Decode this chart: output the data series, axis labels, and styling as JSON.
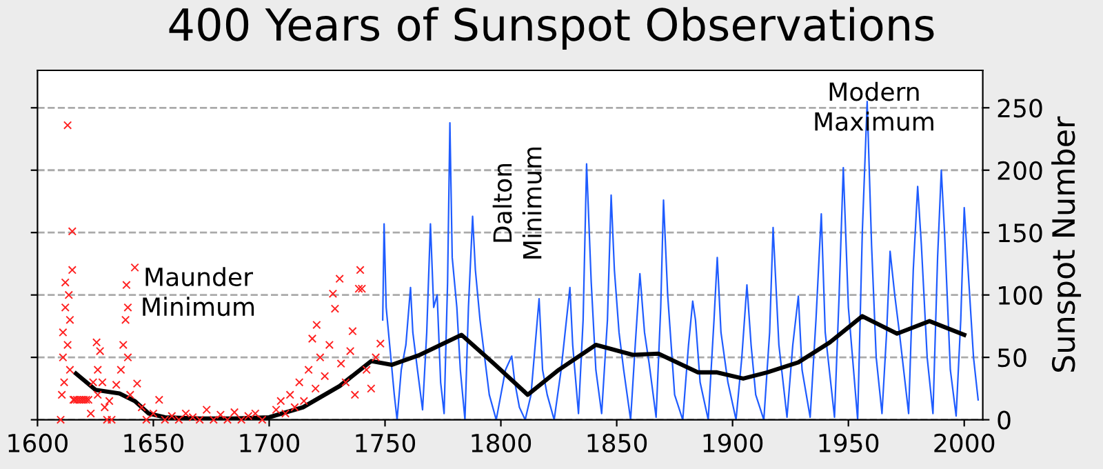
{
  "chart_data": {
    "type": "line",
    "title": "400 Years of Sunspot Observations",
    "ylabel": "Sunspot Number",
    "xlim": [
      1600,
      2008
    ],
    "xticks": [
      1600,
      1650,
      1700,
      1750,
      1800,
      1850,
      1900,
      1950,
      2000
    ],
    "ylim": [
      0,
      280
    ],
    "yticks": [
      0,
      50,
      100,
      150,
      200,
      250
    ],
    "grid": "y",
    "annotations": [
      "Maunder\nMinimum",
      "Dalton\nMinimum",
      "Modern\nMaximum"
    ],
    "series": [
      {
        "color": "#1f5cff",
        "x": [
          1749.0,
          1749.6,
          1750.5,
          1752,
          1754,
          1755.2,
          1757,
          1759,
          1761,
          1762,
          1764,
          1766.2,
          1768,
          1769.6,
          1771,
          1772.5,
          1774,
          1775.5,
          1777,
          1778,
          1779,
          1781,
          1782.5,
          1784.5,
          1786,
          1787.8,
          1789,
          1791,
          1793,
          1795,
          1798,
          1800,
          1802,
          1804.7,
          1806,
          1808,
          1810.5,
          1813,
          1816.5,
          1818,
          1820,
          1823,
          1826,
          1829.8,
          1831,
          1833.5,
          1835.5,
          1837,
          1839,
          1841,
          1843.5,
          1846,
          1847.6,
          1849,
          1851,
          1853,
          1856,
          1858,
          1860,
          1862,
          1864,
          1867,
          1869,
          1870.2,
          1872,
          1875,
          1878.5,
          1881,
          1882.8,
          1884,
          1886,
          1889.5,
          1892,
          1893.4,
          1895,
          1898,
          1901.5,
          1904,
          1906.2,
          1908,
          1910,
          1913.5,
          1916,
          1917.5,
          1920,
          1923.5,
          1926,
          1928.4,
          1930,
          1933.5,
          1936,
          1938.3,
          1940,
          1944,
          1946,
          1947.8,
          1950,
          1954,
          1956,
          1958.1,
          1960,
          1962,
          1964.5,
          1966.5,
          1968,
          1970,
          1972,
          1976,
          1978,
          1979.9,
          1981.5,
          1984,
          1986.5,
          1988.5,
          1990.1,
          1991.5,
          1994,
          1996.5,
          1998.5,
          2000,
          2002,
          2004,
          2006
        ],
        "values": [
          80,
          157,
          90,
          60,
          20,
          0,
          40,
          60,
          106,
          70,
          40,
          8,
          70,
          157,
          90,
          100,
          30,
          5,
          110,
          238,
          130,
          90,
          40,
          0,
          90,
          163,
          120,
          80,
          50,
          20,
          0,
          20,
          40,
          51,
          30,
          10,
          0,
          20,
          97,
          40,
          20,
          0,
          40,
          106,
          60,
          5,
          80,
          205,
          110,
          40,
          5,
          80,
          180,
          120,
          70,
          40,
          0,
          60,
          117,
          70,
          45,
          2,
          90,
          176,
          100,
          20,
          0,
          60,
          95,
          80,
          30,
          0,
          80,
          130,
          70,
          30,
          0,
          50,
          108,
          60,
          20,
          0,
          70,
          154,
          60,
          2,
          60,
          99,
          40,
          2,
          80,
          165,
          70,
          2,
          100,
          202,
          90,
          0,
          150,
          255,
          140,
          50,
          5,
          70,
          135,
          100,
          70,
          5,
          120,
          187,
          140,
          50,
          5,
          130,
          200,
          150,
          40,
          3,
          80,
          170,
          110,
          50,
          16
        ]
      },
      {
        "type": "scatter",
        "color": "#ff2020",
        "marker": "cross",
        "x": [
          1610,
          1610.5,
          1611,
          1611,
          1611.5,
          1612,
          1612,
          1613,
          1613,
          1613.5,
          1614,
          1614,
          1615,
          1615,
          1615.5,
          1616,
          1617,
          1618,
          1619,
          1620,
          1621,
          1622,
          1623,
          1624,
          1625.5,
          1626,
          1626,
          1627,
          1628,
          1629,
          1630,
          1631,
          1632,
          1634,
          1636,
          1637,
          1638,
          1638.4,
          1639,
          1639,
          1640,
          1642,
          1643,
          1645,
          1647,
          1650,
          1652.5,
          1655,
          1658,
          1661,
          1664,
          1667,
          1670,
          1673,
          1676,
          1679,
          1682,
          1685,
          1688,
          1691,
          1694,
          1697,
          1703,
          1705,
          1707,
          1709,
          1711,
          1713,
          1715,
          1717,
          1718.6,
          1720,
          1720.5,
          1722,
          1724,
          1726,
          1727.5,
          1728.4,
          1730.4,
          1731,
          1733,
          1735,
          1736,
          1737,
          1738.7,
          1739.3,
          1740,
          1742,
          1744,
          1746,
          1748
        ],
        "values": [
          0,
          20,
          50,
          70,
          30,
          90,
          110,
          60,
          236,
          100,
          80,
          40,
          151,
          120,
          16,
          16,
          16,
          16,
          16,
          16,
          16,
          16,
          5,
          30,
          62,
          40,
          20,
          55,
          30,
          10,
          0,
          15,
          0,
          28,
          40,
          60,
          80,
          108,
          50,
          90,
          20,
          122,
          29,
          10,
          0,
          5,
          16,
          0,
          3,
          0,
          5,
          2,
          0,
          8,
          0,
          4,
          0,
          6,
          0,
          3,
          5,
          0,
          8,
          15,
          5,
          20,
          10,
          30,
          15,
          40,
          65,
          25,
          76,
          50,
          35,
          60,
          101,
          89,
          113,
          45,
          30,
          55,
          71,
          20,
          105,
          120,
          105,
          40,
          25,
          50,
          61
        ]
      },
      {
        "type": "line",
        "color": "#000000",
        "x": [
          1616.6,
          1625,
          1635.4,
          1642,
          1648,
          1655,
          1670,
          1685,
          1700,
          1714.6,
          1730.4,
          1744,
          1753,
          1765,
          1783,
          1797,
          1811.6,
          1825,
          1841,
          1857,
          1868,
          1885,
          1893,
          1904.6,
          1915,
          1928.4,
          1942,
          1956,
          1971,
          1985,
          2000
        ],
        "values": [
          37,
          24,
          21,
          15,
          5,
          2,
          1,
          1,
          2,
          10,
          27,
          47,
          44,
          52,
          68,
          45,
          20,
          40,
          60,
          52,
          53,
          38,
          38,
          33,
          38,
          46,
          62,
          83,
          69,
          79,
          68
        ]
      }
    ]
  }
}
